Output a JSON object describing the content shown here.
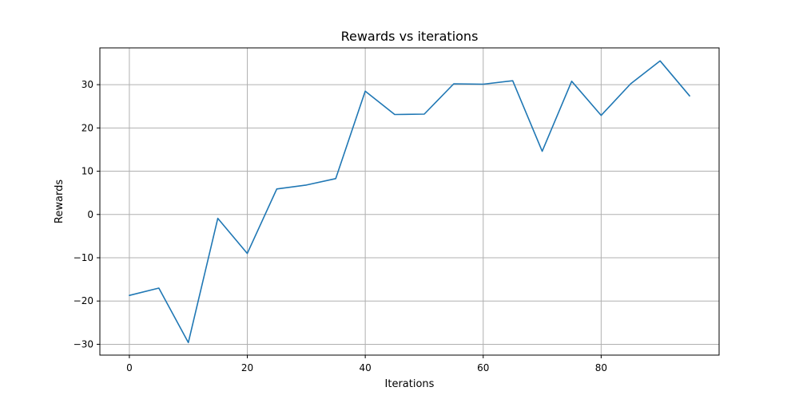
{
  "chart_data": {
    "type": "line",
    "title": "Rewards vs iterations",
    "xlabel": "Iterations",
    "ylabel": "Rewards",
    "xlim": [
      -5,
      100
    ],
    "ylim": [
      -32.5,
      38.5
    ],
    "xticks": [
      0,
      20,
      40,
      60,
      80
    ],
    "yticks": [
      -30,
      -20,
      -10,
      0,
      10,
      20,
      30
    ],
    "xtick_labels": [
      "0",
      "20",
      "40",
      "60",
      "80"
    ],
    "ytick_labels": [
      "−30",
      "−20",
      "−10",
      "0",
      "10",
      "20",
      "30"
    ],
    "grid": true,
    "series": [
      {
        "color": "#1f77b4",
        "x": [
          0,
          5,
          10,
          15,
          20,
          25,
          30,
          35,
          40,
          45,
          50,
          55,
          60,
          65,
          70,
          75,
          80,
          85,
          90,
          95
        ],
        "y": [
          -18.7,
          -17.0,
          -29.6,
          -0.9,
          -9.0,
          5.9,
          6.8,
          8.3,
          28.5,
          23.1,
          23.2,
          30.2,
          30.1,
          30.9,
          14.6,
          30.8,
          22.9,
          30.2,
          35.5,
          27.4
        ]
      }
    ]
  }
}
